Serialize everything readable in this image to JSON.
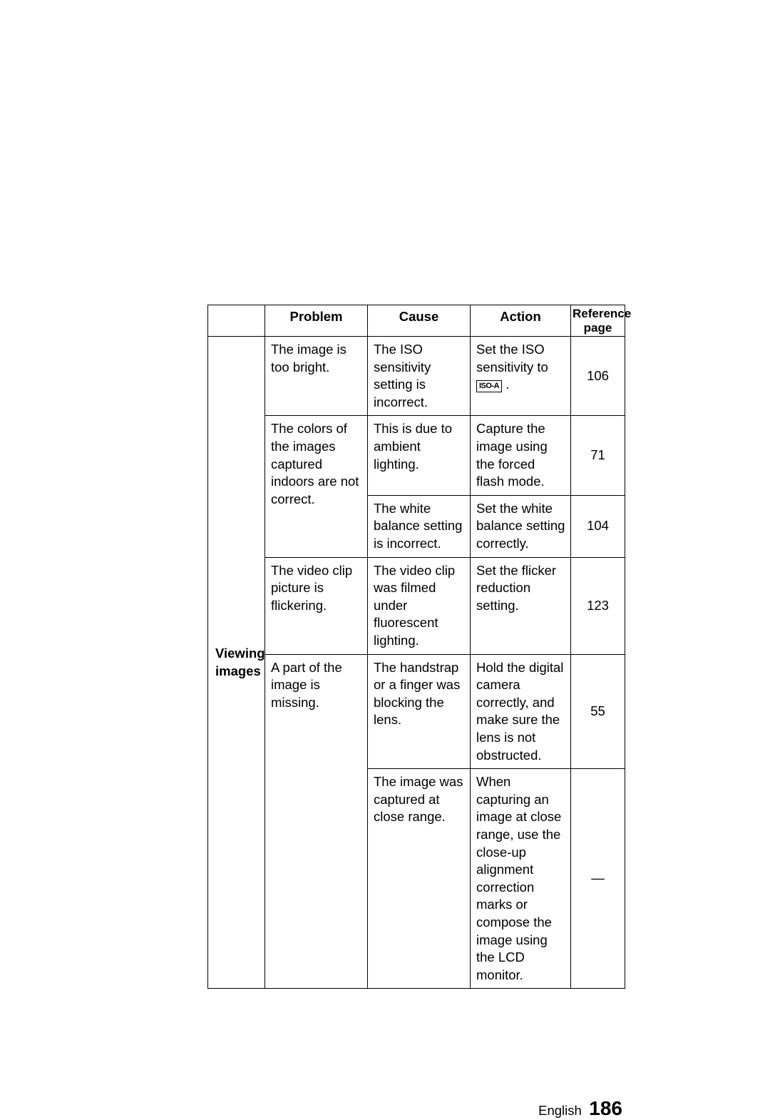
{
  "table": {
    "headers": {
      "problem": "Problem",
      "cause": "Cause",
      "action": "Action",
      "reference_l1": "Reference",
      "reference_l2": "page"
    },
    "category": "Viewing images",
    "rows": [
      {
        "problem": "The image is too bright.",
        "cause": "The ISO sensitivity setting is incorrect.",
        "action_pre": "Set the ISO sensitivity to ",
        "action_icon": "ISO-A",
        "action_post": " .",
        "ref": "106"
      },
      {
        "problem": "The colors of the images captured indoors are not correct.",
        "cause": "This is due to ambient lighting.",
        "action": "Capture the image using the forced flash mode.",
        "ref": "71"
      },
      {
        "cause": "The white balance setting is incorrect.",
        "action": "Set the white balance setting correctly.",
        "ref": "104"
      },
      {
        "problem": "The video clip picture is flickering.",
        "cause": "The video clip was filmed under fluorescent lighting.",
        "action": "Set the flicker reduction setting.",
        "ref": "123"
      },
      {
        "problem": "A part of the image is missing.",
        "cause": "The handstrap or a finger was blocking the lens.",
        "action": "Hold the digital camera correctly, and make sure the lens is not obstructed.",
        "ref": "55"
      },
      {
        "cause": "The image was captured at close range.",
        "action": "When capturing an image at close range, use the close-up alignment correction marks or compose the image using the LCD monitor.",
        "ref": "—"
      }
    ]
  },
  "footer": {
    "language": "English",
    "page_number": "186"
  }
}
